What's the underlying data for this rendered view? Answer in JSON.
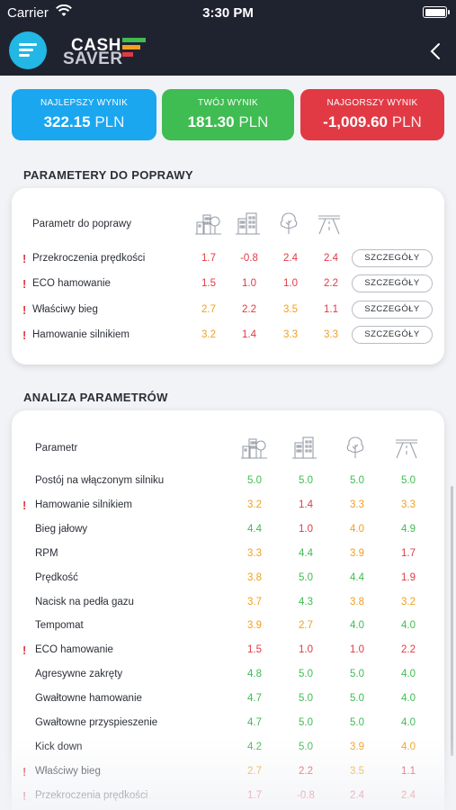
{
  "status": {
    "carrier": "Carrier",
    "time": "3:30 PM"
  },
  "brand": {
    "line1": "CASH",
    "line2": "SAVER",
    "accent_colors": [
      "#3fbc52",
      "#f0a020",
      "#e13a45"
    ]
  },
  "scores": {
    "best": {
      "label": "NAJLEPSZY WYNIK",
      "value": "322.15",
      "unit": "PLN",
      "color": "#1ba6f0"
    },
    "yours": {
      "label": "TWÓJ WYNIK",
      "value": "181.30",
      "unit": "PLN",
      "color": "#3fbc52"
    },
    "worst": {
      "label": "NAJGORSZY WYNIK",
      "value": "-1,009.60",
      "unit": "PLN",
      "color": "#e13a45"
    }
  },
  "improve": {
    "title": "PARAMETERY DO POPRAWY",
    "header": "Parametr do poprawy",
    "icons": [
      "city-icon",
      "buildings-icon",
      "tree-icon",
      "highway-icon"
    ],
    "details_label": "SZCZEGÓŁY",
    "rows": [
      {
        "name": "Przekroczenia prędkości",
        "flag": true,
        "values": [
          "1.7",
          "-0.8",
          "2.4",
          "2.4"
        ],
        "grades": [
          "bad",
          "bad",
          "bad",
          "bad"
        ]
      },
      {
        "name": "ECO hamowanie",
        "flag": true,
        "values": [
          "1.5",
          "1.0",
          "1.0",
          "2.2"
        ],
        "grades": [
          "bad",
          "bad",
          "bad",
          "bad"
        ]
      },
      {
        "name": "Właściwy bieg",
        "flag": true,
        "values": [
          "2.7",
          "2.2",
          "3.5",
          "1.1"
        ],
        "grades": [
          "mid",
          "bad",
          "mid",
          "bad"
        ]
      },
      {
        "name": "Hamowanie silnikiem",
        "flag": true,
        "values": [
          "3.2",
          "1.4",
          "3.3",
          "3.3"
        ],
        "grades": [
          "mid",
          "bad",
          "mid",
          "mid"
        ]
      }
    ]
  },
  "analysis": {
    "title": "ANALIZA PARAMETRÓW",
    "header": "Parametr",
    "icons": [
      "city-icon",
      "buildings-icon",
      "tree-icon",
      "highway-icon"
    ],
    "rows": [
      {
        "name": "Postój na włączonym silniku",
        "flag": false,
        "values": [
          "5.0",
          "5.0",
          "5.0",
          "5.0"
        ],
        "grades": [
          "good",
          "good",
          "good",
          "good"
        ]
      },
      {
        "name": "Hamowanie silnikiem",
        "flag": true,
        "values": [
          "3.2",
          "1.4",
          "3.3",
          "3.3"
        ],
        "grades": [
          "mid",
          "bad",
          "mid",
          "mid"
        ]
      },
      {
        "name": "Bieg jałowy",
        "flag": false,
        "values": [
          "4.4",
          "1.0",
          "4.0",
          "4.9"
        ],
        "grades": [
          "good",
          "bad",
          "mid",
          "good"
        ]
      },
      {
        "name": "RPM",
        "flag": false,
        "values": [
          "3.3",
          "4.4",
          "3.9",
          "1.7"
        ],
        "grades": [
          "mid",
          "good",
          "mid",
          "bad"
        ]
      },
      {
        "name": "Prędkość",
        "flag": false,
        "values": [
          "3.8",
          "5.0",
          "4.4",
          "1.9"
        ],
        "grades": [
          "mid",
          "good",
          "good",
          "bad"
        ]
      },
      {
        "name": "Nacisk na pedła gazu",
        "flag": false,
        "values": [
          "3.7",
          "4.3",
          "3.8",
          "3.2"
        ],
        "grades": [
          "mid",
          "good",
          "mid",
          "mid"
        ]
      },
      {
        "name": "Tempomat",
        "flag": false,
        "values": [
          "3.9",
          "2.7",
          "4.0",
          "4.0"
        ],
        "grades": [
          "mid",
          "mid",
          "good",
          "good"
        ]
      },
      {
        "name": "ECO hamowanie",
        "flag": true,
        "values": [
          "1.5",
          "1.0",
          "1.0",
          "2.2"
        ],
        "grades": [
          "bad",
          "bad",
          "bad",
          "bad"
        ]
      },
      {
        "name": "Agresywne zakręty",
        "flag": false,
        "values": [
          "4.8",
          "5.0",
          "5.0",
          "4.0"
        ],
        "grades": [
          "good",
          "good",
          "good",
          "good"
        ]
      },
      {
        "name": "Gwałtowne hamowanie",
        "flag": false,
        "values": [
          "4.7",
          "5.0",
          "5.0",
          "4.0"
        ],
        "grades": [
          "good",
          "good",
          "good",
          "good"
        ]
      },
      {
        "name": "Gwałtowne przyspieszenie",
        "flag": false,
        "values": [
          "4.7",
          "5.0",
          "5.0",
          "4.0"
        ],
        "grades": [
          "good",
          "good",
          "good",
          "good"
        ]
      },
      {
        "name": "Kick down",
        "flag": false,
        "values": [
          "4.2",
          "5.0",
          "3.9",
          "4.0"
        ],
        "grades": [
          "good",
          "good",
          "mid",
          "mid"
        ]
      },
      {
        "name": "Właściwy bieg",
        "flag": true,
        "values": [
          "2.7",
          "2.2",
          "3.5",
          "1.1"
        ],
        "grades": [
          "mid",
          "bad",
          "mid",
          "bad"
        ]
      },
      {
        "name": "Przekroczenia prędkości",
        "flag": true,
        "values": [
          "1.7",
          "-0.8",
          "2.4",
          "2.4"
        ],
        "grades": [
          "bad",
          "bad",
          "bad",
          "bad"
        ]
      }
    ]
  }
}
